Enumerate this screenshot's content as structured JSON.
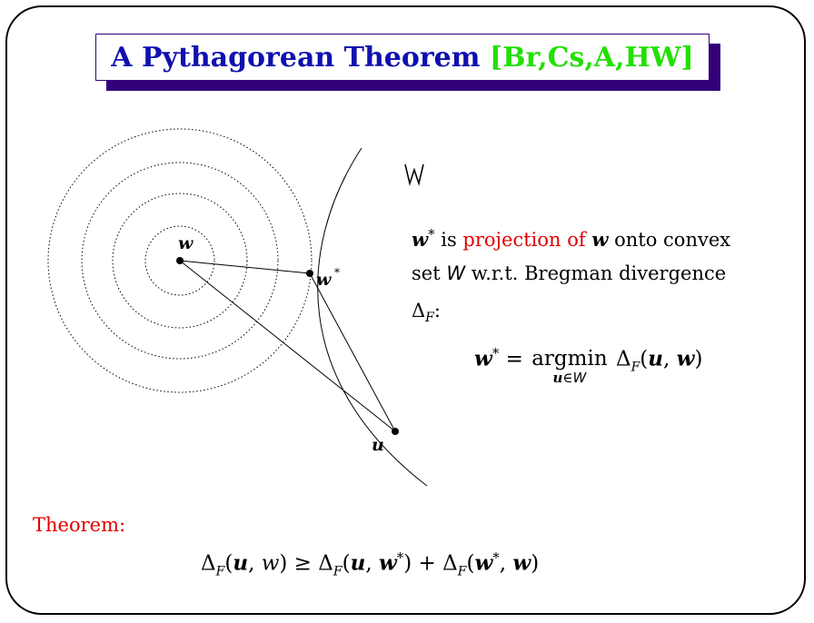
{
  "title": {
    "main": "A Pythagorean Theorem",
    "citation": "[Br,Cs,A,HW]"
  },
  "figure": {
    "label_w": "w",
    "label_wstar": "w",
    "label_star": "*",
    "label_u": "u",
    "set_glyph": "W"
  },
  "description": {
    "wstar": "w",
    "star": "*",
    "is": " is ",
    "projection": "projection",
    "of": " of ",
    "w": "w",
    "onto": " onto convex",
    "set": "set ",
    "set_symbol": "W",
    "wrt": " w.r.t.  Bregman divergence",
    "delta": "Δ",
    "delta_sub": "F",
    "colon": ":"
  },
  "projection_eq": {
    "lhs": "w",
    "star": "*",
    "eq": " = ",
    "argmin": "argmin",
    "under_u": "u",
    "under_in": "∈",
    "under_set": "W",
    "delta": " Δ",
    "delta_sub": "F",
    "open": "(",
    "u": "u",
    "comma": ", ",
    "w": "w",
    "close": ")"
  },
  "theorem": {
    "label": "Theorem:",
    "lhs_delta": "Δ",
    "lhs_sub": "F",
    "lhs_open": "(",
    "lhs_u": "u",
    "lhs_comma": ", ",
    "lhs_w": "w",
    "lhs_close": ")",
    "geq": " ≥ ",
    "t1_delta": "Δ",
    "t1_sub": "F",
    "t1_open": "(",
    "t1_u": "u",
    "t1_comma": ", ",
    "t1_w": "w",
    "t1_star": "*",
    "t1_close": ")",
    "plus": " + ",
    "t2_delta": "Δ",
    "t2_sub": "F",
    "t2_open": "(",
    "t2_w": "w",
    "t2_star": "*",
    "t2_comma": ", ",
    "t2_w2": "w",
    "t2_close": ")"
  },
  "colors": {
    "title_text": "#1010b0",
    "title_citation": "#22e000",
    "title_shadow": "#33007a",
    "highlight": "#e00000"
  }
}
